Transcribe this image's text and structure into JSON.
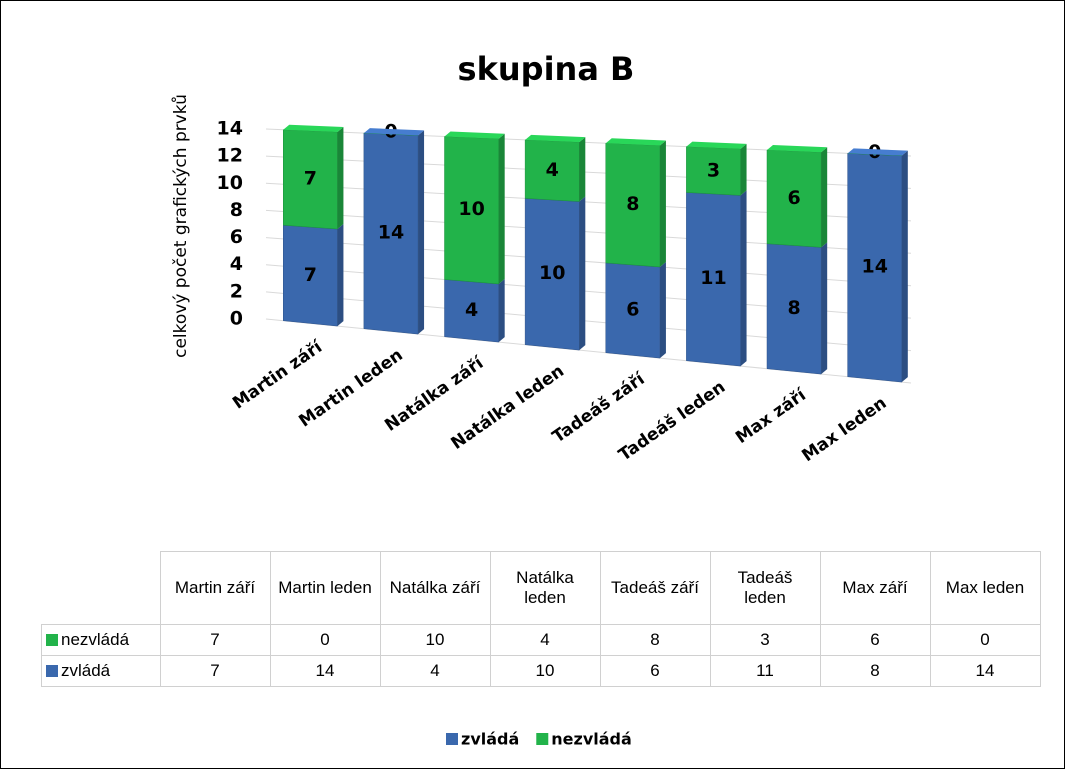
{
  "chart_data": {
    "type": "bar",
    "stacked": true,
    "title": "skupina B",
    "y_label": "celkový počet grafických prvků",
    "categories": [
      "Martin září",
      "Martin leden",
      "Natálka září",
      "Natálka leden",
      "Tadeáš září",
      "Tadeáš leden",
      "Max září",
      "Max leden"
    ],
    "series": [
      {
        "name": "zvládá",
        "color": "#3a68ad",
        "values": [
          7,
          14,
          4,
          10,
          6,
          11,
          8,
          14
        ]
      },
      {
        "name": "nezvládá",
        "color": "#22b34a",
        "values": [
          7,
          0,
          10,
          4,
          8,
          3,
          6,
          0
        ]
      }
    ],
    "ylim": [
      0,
      14
    ],
    "yticks": [
      0,
      2,
      4,
      6,
      8,
      10,
      12,
      14
    ],
    "grid": true,
    "legend": "bottom",
    "data_table": true
  }
}
